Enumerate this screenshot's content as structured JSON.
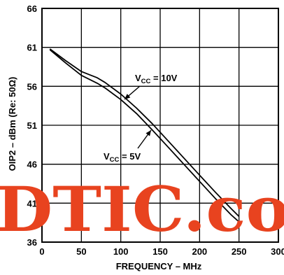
{
  "chart_data": {
    "type": "line",
    "xlabel": "FREQUENCY – MHz",
    "ylabel": "OIP2 – dBm (Re: 50Ω)",
    "xlim": [
      0,
      300
    ],
    "ylim": [
      36,
      66
    ],
    "xticks": [
      0,
      50,
      100,
      150,
      200,
      250,
      300
    ],
    "yticks": [
      36,
      41,
      46,
      51,
      56,
      61,
      66
    ],
    "grid": true,
    "series": [
      {
        "name": "VCC = 10V",
        "annotation": {
          "main": "V",
          "sub": "CC",
          "rest": " = 10V"
        },
        "x": [
          10,
          30,
          50,
          70,
          80,
          100,
          120,
          140,
          160,
          180,
          200,
          220,
          240,
          250
        ],
        "y": [
          60.8,
          59.3,
          57.9,
          57.1,
          56.5,
          55.0,
          53.2,
          51.2,
          49.0,
          46.8,
          44.6,
          42.4,
          40.3,
          39.3
        ]
      },
      {
        "name": "VCC = 5V",
        "annotation": {
          "main": "V",
          "sub": "CC",
          "rest": " = 5V"
        },
        "x": [
          10,
          30,
          50,
          70,
          80,
          100,
          120,
          140,
          160,
          180,
          200,
          220,
          240,
          250
        ],
        "y": [
          60.7,
          59.0,
          57.4,
          56.4,
          55.8,
          54.3,
          52.5,
          50.4,
          48.2,
          46.0,
          43.8,
          41.6,
          39.5,
          38.6
        ]
      }
    ]
  },
  "watermark": "DTIC.co",
  "colors": {
    "line": "#000000",
    "grid": "#000000",
    "watermark": "#e8431f"
  }
}
